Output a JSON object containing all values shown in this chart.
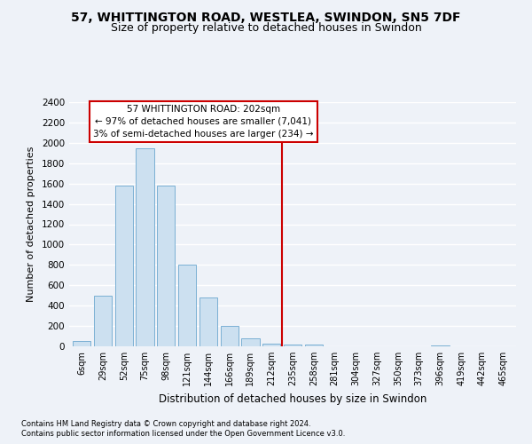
{
  "title_line1": "57, WHITTINGTON ROAD, WESTLEA, SWINDON, SN5 7DF",
  "title_line2": "Size of property relative to detached houses in Swindon",
  "xlabel": "Distribution of detached houses by size in Swindon",
  "ylabel": "Number of detached properties",
  "footnote1": "Contains HM Land Registry data © Crown copyright and database right 2024.",
  "footnote2": "Contains public sector information licensed under the Open Government Licence v3.0.",
  "categories": [
    "6sqm",
    "29sqm",
    "52sqm",
    "75sqm",
    "98sqm",
    "121sqm",
    "144sqm",
    "166sqm",
    "189sqm",
    "212sqm",
    "235sqm",
    "258sqm",
    "281sqm",
    "304sqm",
    "327sqm",
    "350sqm",
    "373sqm",
    "396sqm",
    "419sqm",
    "442sqm",
    "465sqm"
  ],
  "values": [
    50,
    500,
    1580,
    1950,
    1580,
    800,
    480,
    200,
    80,
    30,
    20,
    20,
    0,
    0,
    0,
    0,
    0,
    10,
    0,
    0,
    0
  ],
  "bar_color": "#cce0f0",
  "bar_edge_color": "#7ab0d4",
  "vline_x": 9.5,
  "vline_color": "#cc0000",
  "annotation_text": "57 WHITTINGTON ROAD: 202sqm\n← 97% of detached houses are smaller (7,041)\n3% of semi-detached houses are larger (234) →",
  "annotation_box_color": "#cc0000",
  "ylim": [
    0,
    2400
  ],
  "yticks": [
    0,
    200,
    400,
    600,
    800,
    1000,
    1200,
    1400,
    1600,
    1800,
    2000,
    2200,
    2400
  ],
  "background_color": "#eef2f8",
  "grid_color": "#ffffff",
  "title_fontsize": 10,
  "subtitle_fontsize": 9
}
